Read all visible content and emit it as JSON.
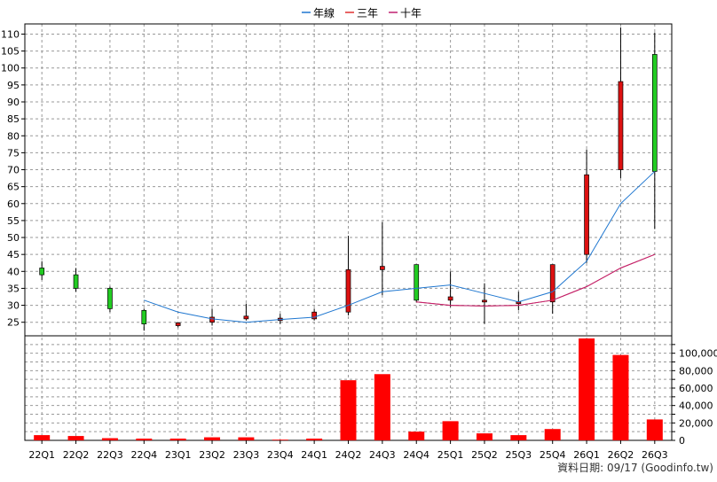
{
  "legend": [
    {
      "name": "年線",
      "color": "#1f77d0"
    },
    {
      "name": "三年",
      "color": "#e03030"
    },
    {
      "name": "十年",
      "color": "#c02070"
    }
  ],
  "footer": "資料日期: 09/17  (Goodinfo.tw)",
  "chart_data": {
    "type": "candlestick",
    "categories": [
      "22Q1",
      "22Q2",
      "22Q3",
      "22Q4",
      "23Q1",
      "23Q2",
      "23Q3",
      "23Q4",
      "24Q1",
      "24Q2",
      "24Q3",
      "24Q4",
      "25Q1",
      "25Q2",
      "25Q3",
      "25Q4",
      "26Q1",
      "26Q2",
      "26Q3"
    ],
    "price_axis": {
      "ylim": [
        21,
        113
      ],
      "ticks": [
        25,
        30,
        35,
        40,
        45,
        50,
        55,
        60,
        65,
        70,
        75,
        80,
        85,
        90,
        95,
        100,
        105,
        110
      ]
    },
    "volume_axis": {
      "ylim": [
        0,
        120000
      ],
      "ticks": [
        0,
        20000,
        40000,
        60000,
        80000,
        100000
      ],
      "tick_labels": [
        "0",
        "20,000",
        "40,000",
        "60,000",
        "80,000",
        "100,000"
      ]
    },
    "ohlc": [
      {
        "o": 39.0,
        "h": 43.0,
        "l": 37.5,
        "c": 41.0,
        "color": "green"
      },
      {
        "o": 39.0,
        "h": 41.0,
        "l": 34.0,
        "c": 35.0,
        "color": "green"
      },
      {
        "o": 35.0,
        "h": 35.5,
        "l": 28.0,
        "c": 29.0,
        "color": "green"
      },
      {
        "o": 28.5,
        "h": 29.0,
        "l": 22.5,
        "c": 24.5,
        "color": "green"
      },
      {
        "o": 24.0,
        "h": 25.0,
        "l": 23.5,
        "c": 24.8,
        "color": "red"
      },
      {
        "o": 25.0,
        "h": 29.0,
        "l": 24.0,
        "c": 26.5,
        "color": "red"
      },
      {
        "o": 26.0,
        "h": 30.5,
        "l": 25.5,
        "c": 26.8,
        "color": "red"
      },
      {
        "o": 25.5,
        "h": 27.5,
        "l": 24.5,
        "c": 26.2,
        "color": "red"
      },
      {
        "o": 26.0,
        "h": 29.0,
        "l": 25.5,
        "c": 28.0,
        "color": "red"
      },
      {
        "o": 28.0,
        "h": 50.5,
        "l": 27.0,
        "c": 40.5,
        "color": "red"
      },
      {
        "o": 40.5,
        "h": 54.5,
        "l": 33.0,
        "c": 41.5,
        "color": "red"
      },
      {
        "o": 42.0,
        "h": 42.0,
        "l": 31.0,
        "c": 31.5,
        "color": "green"
      },
      {
        "o": 31.5,
        "h": 40.0,
        "l": 29.5,
        "c": 32.5,
        "color": "red"
      },
      {
        "o": 31.0,
        "h": 36.5,
        "l": 24.5,
        "c": 31.5,
        "color": "red"
      },
      {
        "o": 30.5,
        "h": 34.0,
        "l": 28.5,
        "c": 31.0,
        "color": "red"
      },
      {
        "o": 31.0,
        "h": 42.0,
        "l": 27.5,
        "c": 42.0,
        "color": "red"
      },
      {
        "o": 45.0,
        "h": 76.0,
        "l": 42.5,
        "c": 68.5,
        "color": "red"
      },
      {
        "o": 70.0,
        "h": 112.0,
        "l": 67.5,
        "c": 96.0,
        "color": "red"
      },
      {
        "o": 104.0,
        "h": 110.5,
        "l": 52.5,
        "c": 69.5,
        "color": "green"
      }
    ],
    "volume": [
      6000,
      5000,
      2500,
      2000,
      2000,
      3500,
      3500,
      800,
      2000,
      69000,
      76000,
      10000,
      22000,
      8000,
      6000,
      13000,
      117000,
      98000,
      24000
    ],
    "series": [
      {
        "name": "年線",
        "color": "#1f77d0",
        "values": [
          null,
          null,
          null,
          31.5,
          28.0,
          26.0,
          25.0,
          25.8,
          26.5,
          30.0,
          34.0,
          35.0,
          36.0,
          33.5,
          31.0,
          34.0,
          43.0,
          60.0,
          69.5
        ]
      },
      {
        "name": "三年",
        "color": "#e03030",
        "values": [
          null,
          null,
          null,
          null,
          null,
          null,
          null,
          null,
          null,
          null,
          null,
          31.0,
          30.0,
          29.8,
          30.0,
          31.5,
          35.5,
          41.0,
          45.0
        ]
      },
      {
        "name": "十年",
        "color": "#c02070",
        "values": [
          null,
          null,
          null,
          null,
          null,
          null,
          null,
          null,
          null,
          null,
          null,
          31.0,
          30.0,
          29.8,
          30.0,
          31.5,
          35.5,
          41.0,
          45.0
        ]
      }
    ],
    "grid": true
  }
}
